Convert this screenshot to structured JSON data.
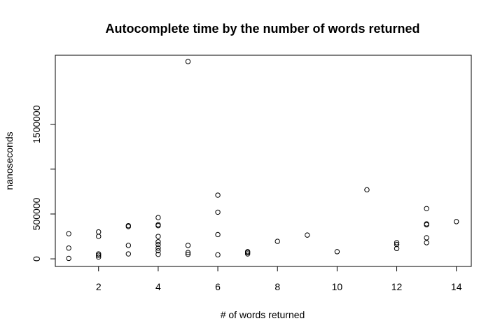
{
  "chart_data": {
    "type": "scatter",
    "title": "Autocomplete time by the number of words returned",
    "xlabel": "# of words returned",
    "ylabel": "nanoseconds",
    "xlim": [
      0.55,
      14.5
    ],
    "ylim": [
      -85000,
      2270000
    ],
    "x_ticks": [
      2,
      4,
      6,
      8,
      10,
      12,
      14
    ],
    "x_tick_labels": [
      "2",
      "4",
      "6",
      "8",
      "10",
      "12",
      "14"
    ],
    "y_ticks": [
      0,
      500000,
      1000000,
      1500000
    ],
    "y_tick_labels": [
      "0",
      "500000",
      "",
      "1500000"
    ],
    "grid": false,
    "legend": "none",
    "marker": "open-circle",
    "points": [
      {
        "x": 1,
        "y": 280000
      },
      {
        "x": 1,
        "y": 120000
      },
      {
        "x": 1,
        "y": 5000
      },
      {
        "x": 2,
        "y": 300000
      },
      {
        "x": 2,
        "y": 250000
      },
      {
        "x": 2,
        "y": 55000
      },
      {
        "x": 2,
        "y": 40000
      },
      {
        "x": 2,
        "y": 20000
      },
      {
        "x": 3,
        "y": 370000
      },
      {
        "x": 3,
        "y": 360000
      },
      {
        "x": 3,
        "y": 150000
      },
      {
        "x": 3,
        "y": 55000
      },
      {
        "x": 4,
        "y": 460000
      },
      {
        "x": 4,
        "y": 380000
      },
      {
        "x": 4,
        "y": 370000
      },
      {
        "x": 4,
        "y": 250000
      },
      {
        "x": 4,
        "y": 190000
      },
      {
        "x": 4,
        "y": 160000
      },
      {
        "x": 4,
        "y": 120000
      },
      {
        "x": 4,
        "y": 90000
      },
      {
        "x": 4,
        "y": 50000
      },
      {
        "x": 5,
        "y": 2200000
      },
      {
        "x": 5,
        "y": 150000
      },
      {
        "x": 5,
        "y": 70000
      },
      {
        "x": 5,
        "y": 50000
      },
      {
        "x": 6,
        "y": 710000
      },
      {
        "x": 6,
        "y": 520000
      },
      {
        "x": 6,
        "y": 270000
      },
      {
        "x": 6,
        "y": 45000
      },
      {
        "x": 7,
        "y": 80000
      },
      {
        "x": 7,
        "y": 70000
      },
      {
        "x": 7,
        "y": 55000
      },
      {
        "x": 8,
        "y": 195000
      },
      {
        "x": 9,
        "y": 265000
      },
      {
        "x": 10,
        "y": 80000
      },
      {
        "x": 11,
        "y": 770000
      },
      {
        "x": 12,
        "y": 180000
      },
      {
        "x": 12,
        "y": 160000
      },
      {
        "x": 12,
        "y": 115000
      },
      {
        "x": 13,
        "y": 560000
      },
      {
        "x": 13,
        "y": 390000
      },
      {
        "x": 13,
        "y": 380000
      },
      {
        "x": 13,
        "y": 235000
      },
      {
        "x": 13,
        "y": 180000
      },
      {
        "x": 14,
        "y": 415000
      }
    ]
  }
}
